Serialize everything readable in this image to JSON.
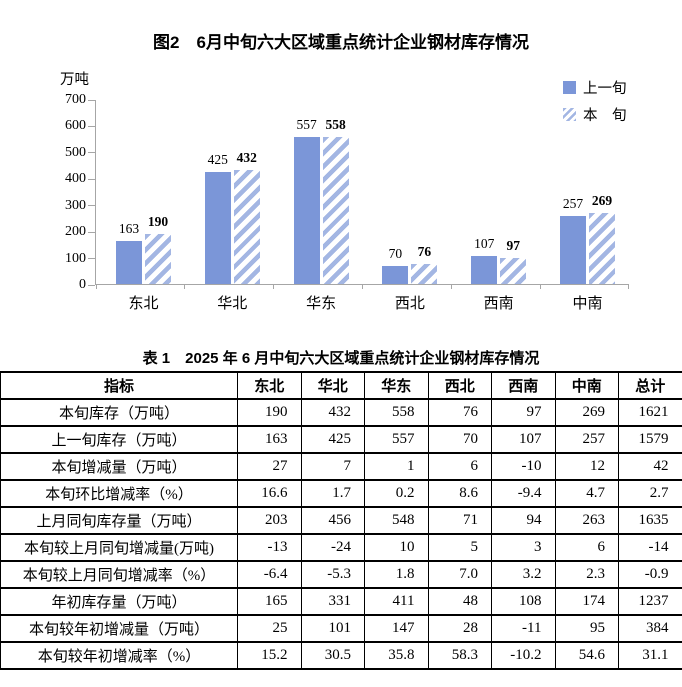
{
  "chart_data": [
    {
      "type": "bar",
      "title": "图2　6月中旬六大区域重点统计企业钢材库存情况",
      "ylabel": "万吨",
      "categories": [
        "东北",
        "华北",
        "华东",
        "西北",
        "西南",
        "中南"
      ],
      "series": [
        {
          "name": "上一旬",
          "values": [
            163,
            425,
            557,
            70,
            107,
            257
          ]
        },
        {
          "name": "本旬",
          "values": [
            190,
            432,
            558,
            76,
            97,
            269
          ]
        }
      ],
      "legend_labels": [
        "上一旬",
        "本　旬"
      ],
      "legend_position": "top-right",
      "ylim": [
        0,
        700
      ],
      "yticks": [
        700,
        600,
        500,
        400,
        300,
        200,
        100,
        0
      ],
      "grid": false,
      "bar_labels": true,
      "colors": {
        "previous_bar": "#7b96d8",
        "current_bar_hatch": "#a3b6e3",
        "axis": "#a6a6a6"
      }
    },
    {
      "type": "table",
      "title": "表 1　2025 年 6 月中旬六大区域重点统计企业钢材库存情况",
      "columns": [
        "指标",
        "东北",
        "华北",
        "华东",
        "西北",
        "西南",
        "中南",
        "总计"
      ],
      "rows": [
        {
          "label": "本旬库存（万吨）",
          "values": [
            "190",
            "432",
            "558",
            "76",
            "97",
            "269",
            "1621"
          ]
        },
        {
          "label": "上一旬库存（万吨）",
          "values": [
            "163",
            "425",
            "557",
            "70",
            "107",
            "257",
            "1579"
          ]
        },
        {
          "label": "本旬增减量（万吨）",
          "values": [
            "27",
            "7",
            "1",
            "6",
            "-10",
            "12",
            "42"
          ]
        },
        {
          "label": "本旬环比增减率（%）",
          "values": [
            "16.6",
            "1.7",
            "0.2",
            "8.6",
            "-9.4",
            "4.7",
            "2.7"
          ]
        },
        {
          "label": "上月同旬库存量（万吨）",
          "values": [
            "203",
            "456",
            "548",
            "71",
            "94",
            "263",
            "1635"
          ]
        },
        {
          "label": "本旬较上月同旬增减量(万吨)",
          "values": [
            "-13",
            "-24",
            "10",
            "5",
            "3",
            "6",
            "-14"
          ]
        },
        {
          "label": "本旬较上月同旬增减率（%）",
          "values": [
            "-6.4",
            "-5.3",
            "1.8",
            "7.0",
            "3.2",
            "2.3",
            "-0.9"
          ]
        },
        {
          "label": "年初库存量（万吨）",
          "values": [
            "165",
            "331",
            "411",
            "48",
            "108",
            "174",
            "1237"
          ]
        },
        {
          "label": "本旬较年初增减量（万吨）",
          "values": [
            "25",
            "101",
            "147",
            "28",
            "-11",
            "95",
            "384"
          ]
        },
        {
          "label": "本旬较年初增减率（%）",
          "values": [
            "15.2",
            "30.5",
            "35.8",
            "58.3",
            "-10.2",
            "54.6",
            "31.1"
          ]
        }
      ]
    }
  ]
}
